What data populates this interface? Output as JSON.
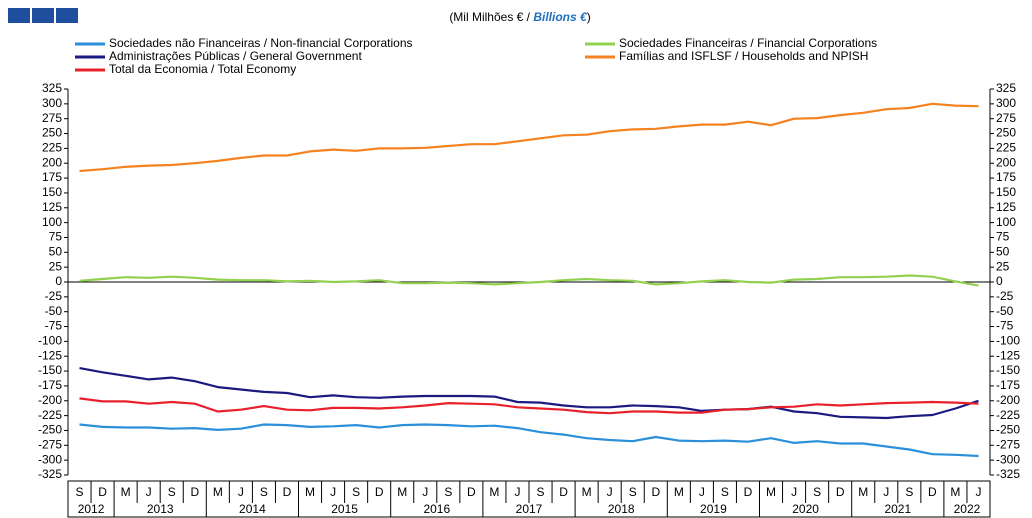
{
  "chart_data": {
    "type": "line",
    "title_parts": [
      "(Mil Milhões € / ",
      "Billions €",
      ")"
    ],
    "categories": [
      "S",
      "D",
      "M",
      "J",
      "S",
      "D",
      "M",
      "J",
      "S",
      "D",
      "M",
      "J",
      "S",
      "D",
      "M",
      "J",
      "S",
      "D",
      "M",
      "J",
      "S",
      "D",
      "M",
      "J",
      "S",
      "D",
      "M",
      "J",
      "S",
      "D",
      "M",
      "J",
      "S",
      "D",
      "M",
      "J",
      "S",
      "D",
      "M",
      "J"
    ],
    "category_years": [
      "2012",
      "2012",
      "2013",
      "2013",
      "2013",
      "2013",
      "2014",
      "2014",
      "2014",
      "2014",
      "2015",
      "2015",
      "2015",
      "2015",
      "2016",
      "2016",
      "2016",
      "2016",
      "2017",
      "2017",
      "2017",
      "2017",
      "2018",
      "2018",
      "2018",
      "2018",
      "2019",
      "2019",
      "2019",
      "2019",
      "2020",
      "2020",
      "2020",
      "2020",
      "2021",
      "2021",
      "2021",
      "2021",
      "2022",
      "2022"
    ],
    "series": [
      {
        "name": "Sociedades não Financeiras / Non-financial Corporations",
        "color": "#2b8fd9",
        "values": [
          -240,
          -244,
          -245,
          -245,
          -247,
          -246,
          -249,
          -247,
          -240,
          -241,
          -244,
          -243,
          -241,
          -245,
          -241,
          -240,
          -241,
          -243,
          -242,
          -246,
          -253,
          -257,
          -263,
          -266,
          -268,
          -261,
          -267,
          -268,
          -267,
          -269,
          -263,
          -271,
          -268,
          -272,
          -272,
          -277,
          -282,
          -290,
          -291,
          -293
        ]
      },
      {
        "name": "Sociedades Financeiras / Financial Corporations",
        "color": "#92d050",
        "values": [
          2,
          5,
          8,
          7,
          9,
          7,
          4,
          3,
          3,
          1,
          2,
          0,
          1,
          3,
          -2,
          -2,
          -1,
          -2,
          -4,
          -2,
          0,
          3,
          5,
          3,
          2,
          -4,
          -2,
          1,
          3,
          0,
          -1,
          4,
          5,
          8,
          8,
          9,
          11,
          9,
          1,
          -6
        ]
      },
      {
        "name": "Administrações Públicas / General Government",
        "color": "#1a1a80",
        "values": [
          -145,
          -152,
          -158,
          -164,
          -161,
          -167,
          -177,
          -181,
          -185,
          -187,
          -194,
          -191,
          -194,
          -195,
          -193,
          -192,
          -192,
          -192,
          -193,
          -202,
          -203,
          -208,
          -211,
          -211,
          -208,
          -209,
          -211,
          -217,
          -215,
          -214,
          -210,
          -218,
          -221,
          -227,
          -228,
          -229,
          -226,
          -224,
          -213,
          -200
        ]
      },
      {
        "name": "Famílias and ISFLSF / Households and NPISH",
        "color": "#f58220",
        "values": [
          187,
          190,
          194,
          196,
          197,
          200,
          204,
          209,
          213,
          213,
          220,
          223,
          221,
          225,
          225,
          226,
          229,
          232,
          232,
          237,
          242,
          247,
          248,
          254,
          257,
          258,
          262,
          265,
          265,
          270,
          264,
          275,
          276,
          281,
          285,
          291,
          293,
          300,
          297,
          296
        ]
      },
      {
        "name": "Total da Economia / Total Economy",
        "color": "#e8202a",
        "values": [
          -196,
          -201,
          -201,
          -205,
          -202,
          -205,
          -218,
          -215,
          -209,
          -215,
          -216,
          -212,
          -212,
          -213,
          -211,
          -208,
          -204,
          -205,
          -206,
          -211,
          -213,
          -215,
          -219,
          -221,
          -218,
          -218,
          -220,
          -220,
          -215,
          -214,
          -211,
          -210,
          -206,
          -208,
          -206,
          -204,
          -203,
          -202,
          -203,
          -205
        ]
      }
    ],
    "ylim": [
      -325,
      325
    ],
    "yticks": [
      -325,
      -300,
      -275,
      -250,
      -225,
      -200,
      -175,
      -150,
      -125,
      -100,
      -75,
      -50,
      -25,
      0,
      25,
      50,
      75,
      100,
      125,
      150,
      175,
      200,
      225,
      250,
      275,
      300,
      325
    ],
    "grid": false
  }
}
